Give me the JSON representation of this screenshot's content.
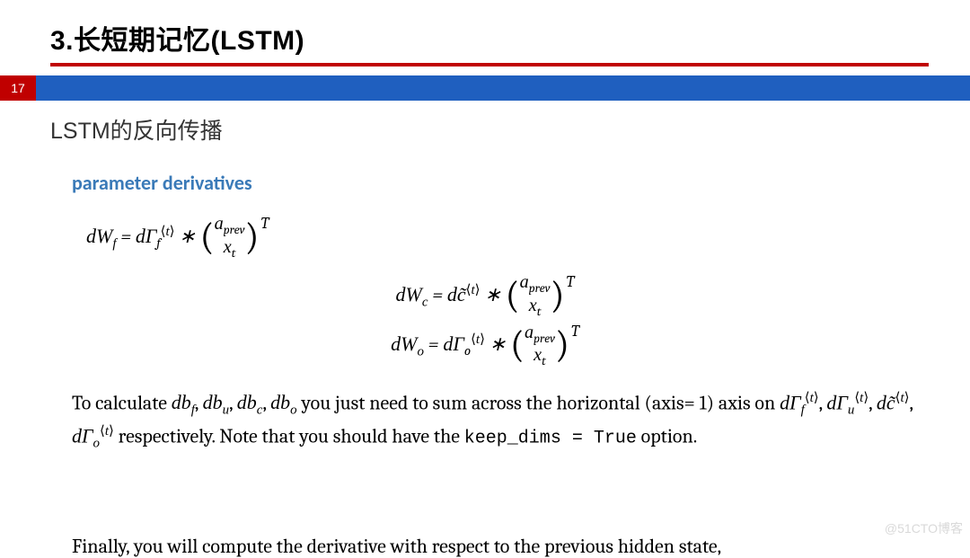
{
  "title": "3.长短期记忆(LSTM)",
  "page_number": "17",
  "subtitle": "LSTM的反向传播",
  "section_heading": "parameter derivatives",
  "paragraph": {
    "p1_a": "To calculate ",
    "p1_b": " you just need to sum across the horizontal (axis= 1) axis on ",
    "p1_c": " respectively. Note that you should have the ",
    "p1_d": " option.",
    "code1": "keep_dims = True",
    "final": "Finally, you will compute the derivative with respect to the previous hidden state,"
  },
  "math": {
    "dWf_lhs": "dW",
    "dGamma": "dΓ",
    "a_prev": "a",
    "prev_sub": "prev",
    "x": "x",
    "t": "t",
    "dWc": "dW",
    "dc_tilde": "dc̃",
    "dWo_G": "dΓ",
    "db": "db"
  },
  "colors": {
    "accent_red": "#c00000",
    "bar_blue": "#1f5fbf",
    "heading_blue": "#3a7ab8"
  },
  "watermark": "@51CTO博客"
}
